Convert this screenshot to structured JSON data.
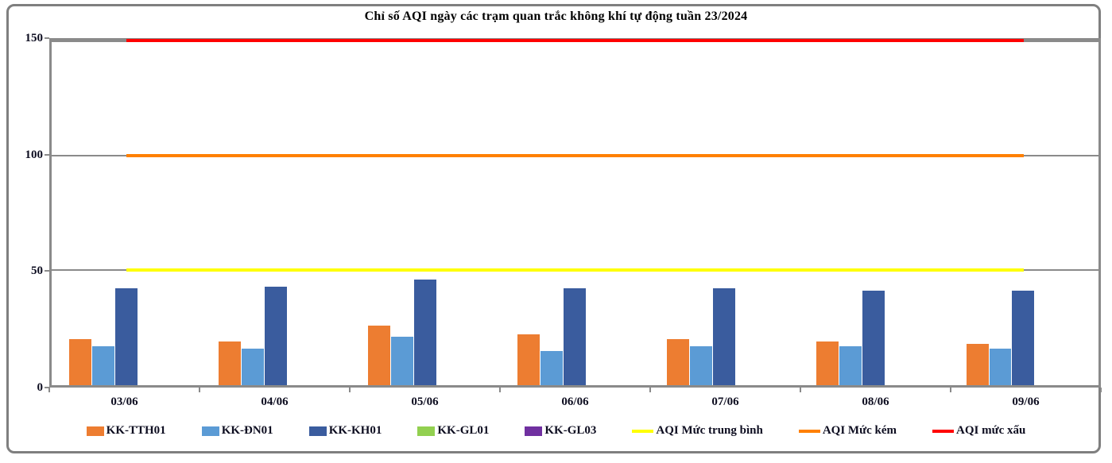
{
  "title": "Chỉ số AQI ngày các trạm quan trắc không khí tự động tuần 23/2024",
  "colors": {
    "frame_border": "#7f7f7f",
    "plot_border": "#8a8a8a",
    "gridline": "#8a8a8a",
    "text": "#0d0d20"
  },
  "chart_data": {
    "type": "bar",
    "title": "Chỉ số AQI ngày các trạm quan trắc không khí tự động tuần 23/2024",
    "xlabel": "",
    "ylabel": "",
    "ylim": [
      0,
      150
    ],
    "yticks": [
      0,
      50,
      100,
      150
    ],
    "grid": true,
    "legend_position": "bottom",
    "categories": [
      "03/06",
      "04/06",
      "05/06",
      "06/06",
      "07/06",
      "08/06",
      "09/06"
    ],
    "series": [
      {
        "name": "KK-TTH01",
        "kind": "bar",
        "color": "#ED7D31",
        "values": [
          20,
          19,
          26,
          22,
          20,
          19,
          18
        ]
      },
      {
        "name": "KK-ĐN01",
        "kind": "bar",
        "color": "#5B9BD5",
        "values": [
          17,
          16,
          21,
          15,
          17,
          17,
          16
        ]
      },
      {
        "name": "KK-KH01",
        "kind": "bar",
        "color": "#3A5C9E",
        "values": [
          42,
          43,
          46,
          42,
          42,
          41,
          41
        ]
      },
      {
        "name": "KK-GL01",
        "kind": "bar",
        "color": "#92D050",
        "values": [
          0,
          0,
          0,
          0,
          0,
          0,
          0
        ]
      },
      {
        "name": "KK-GL03",
        "kind": "bar",
        "color": "#7030A0",
        "values": [
          0,
          0,
          0,
          0,
          0,
          0,
          0
        ]
      },
      {
        "name": "AQI Mức trung bình",
        "kind": "line",
        "color": "#FFFF00",
        "value": 50
      },
      {
        "name": "AQI Mức kém",
        "kind": "line",
        "color": "#FF8000",
        "value": 100
      },
      {
        "name": "AQI mức xấu",
        "kind": "line",
        "color": "#FF0000",
        "value": 150
      }
    ]
  }
}
